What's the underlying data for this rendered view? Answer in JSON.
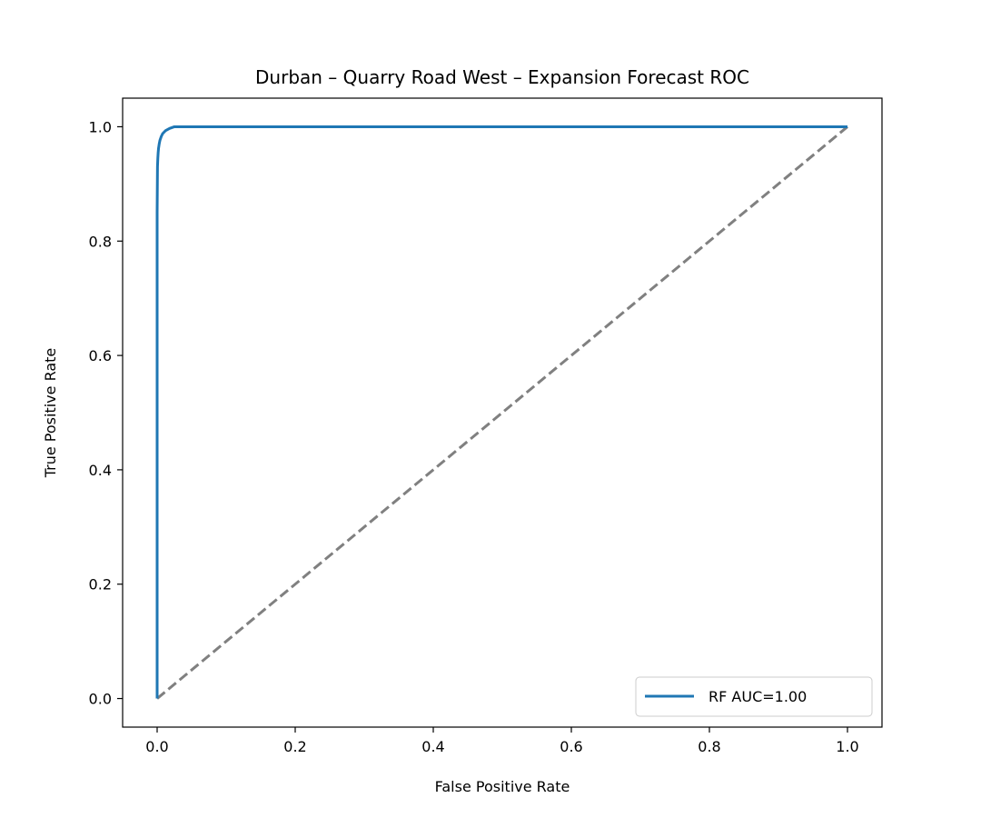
{
  "chart_data": {
    "type": "line",
    "title": "Durban – Quarry Road West – Expansion Forecast ROC",
    "xlabel": "False Positive Rate",
    "ylabel": "True Positive Rate",
    "xlim": [
      -0.05,
      1.05
    ],
    "ylim": [
      -0.05,
      1.05
    ],
    "xticks": [
      0.0,
      0.2,
      0.4,
      0.6,
      0.8,
      1.0
    ],
    "xtick_labels": [
      "0.0",
      "0.2",
      "0.4",
      "0.6",
      "0.8",
      "1.0"
    ],
    "yticks": [
      0.0,
      0.2,
      0.4,
      0.6,
      0.8,
      1.0
    ],
    "ytick_labels": [
      "0.0",
      "0.2",
      "0.4",
      "0.6",
      "0.8",
      "1.0"
    ],
    "grid": false,
    "legend_position": "lower-right",
    "series": [
      {
        "name": "RF AUC=1.00",
        "style": "solid",
        "color": "#1f77b4",
        "x": [
          0.0,
          0.0,
          0.0005,
          0.001,
          0.0015,
          0.002,
          0.003,
          0.004,
          0.006,
          0.008,
          0.012,
          0.018,
          0.025,
          0.05,
          1.0
        ],
        "y": [
          0.0,
          0.85,
          0.93,
          0.945,
          0.955,
          0.962,
          0.97,
          0.976,
          0.983,
          0.988,
          0.993,
          0.997,
          1.0,
          1.0,
          1.0
        ]
      },
      {
        "style": "dashed",
        "color": "#808080",
        "x": [
          0.0,
          1.0
        ],
        "y": [
          0.0,
          1.0
        ]
      }
    ]
  }
}
